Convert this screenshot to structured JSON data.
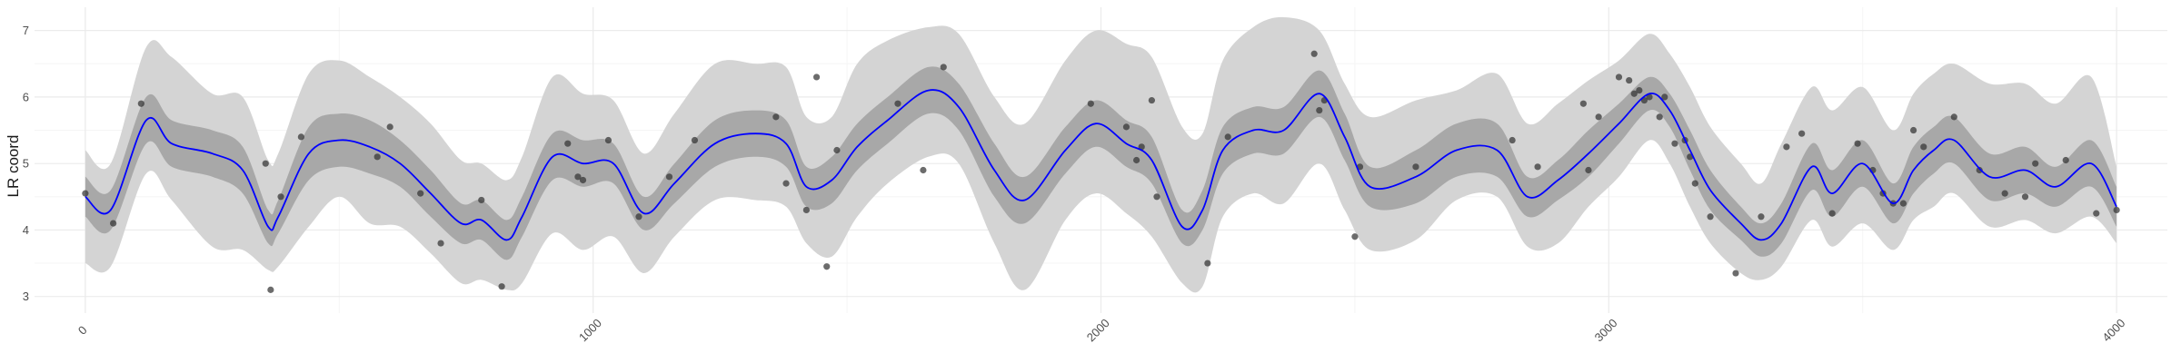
{
  "chart_data": {
    "type": "line",
    "title": "",
    "xlabel": "",
    "ylabel": "LR coord",
    "xlim": [
      -100,
      4100
    ],
    "ylim": [
      2.75,
      7.35
    ],
    "x_ticks": [
      0,
      1000,
      2000,
      3000,
      4000
    ],
    "x_tick_labels": [
      "0",
      "1000",
      "2000",
      "3000",
      "4000"
    ],
    "y_ticks": [
      3,
      4,
      5,
      6,
      7
    ],
    "y_tick_labels": [
      "3",
      "4",
      "5",
      "6",
      "7"
    ],
    "grid": true,
    "colors": {
      "mean_line": "#0000ff",
      "inner_band": "#a8a8a8",
      "outer_band": "#d4d4d4",
      "points": "#333333",
      "grid_major": "#ebebeb",
      "grid_minor": "#f5f5f5"
    },
    "mean_curve": {
      "x": [
        0,
        50,
        120,
        170,
        250,
        310,
        360,
        380,
        440,
        500,
        560,
        620,
        680,
        740,
        780,
        830,
        860,
        920,
        980,
        1040,
        1100,
        1160,
        1240,
        1320,
        1380,
        1420,
        1470,
        1520,
        1580,
        1660,
        1720,
        1790,
        1850,
        1930,
        1990,
        2050,
        2100,
        2160,
        2200,
        2240,
        2300,
        2360,
        2430,
        2480,
        2530,
        2620,
        2700,
        2780,
        2840,
        2900,
        2960,
        3020,
        3080,
        3120,
        3160,
        3200,
        3260,
        3300,
        3340,
        3400,
        3440,
        3500,
        3560,
        3600,
        3640,
        3680,
        3750,
        3820,
        3880,
        3950,
        4000
      ],
      "y": [
        4.5,
        4.3,
        5.65,
        5.3,
        5.15,
        4.9,
        4.05,
        4.2,
        5.15,
        5.35,
        5.25,
        5.0,
        4.55,
        4.1,
        4.15,
        3.85,
        4.2,
        5.1,
        5.0,
        5.0,
        4.25,
        4.7,
        5.3,
        5.45,
        5.3,
        4.65,
        4.75,
        5.25,
        5.65,
        6.1,
        5.85,
        4.9,
        4.45,
        5.2,
        5.6,
        5.3,
        5.05,
        4.05,
        4.3,
        5.2,
        5.5,
        5.5,
        6.05,
        5.4,
        4.65,
        4.8,
        5.2,
        5.2,
        4.5,
        4.75,
        5.15,
        5.6,
        6.05,
        5.8,
        5.2,
        4.6,
        4.1,
        3.85,
        4.1,
        4.95,
        4.55,
        5.0,
        4.4,
        4.9,
        5.2,
        5.35,
        4.8,
        4.9,
        4.65,
        5.0,
        4.35
      ]
    },
    "inner_band": {
      "x": [
        0,
        50,
        120,
        170,
        250,
        310,
        360,
        380,
        440,
        500,
        560,
        620,
        680,
        740,
        780,
        830,
        860,
        920,
        980,
        1040,
        1100,
        1160,
        1240,
        1320,
        1380,
        1420,
        1470,
        1520,
        1580,
        1660,
        1720,
        1790,
        1850,
        1930,
        1990,
        2050,
        2100,
        2160,
        2200,
        2240,
        2300,
        2360,
        2430,
        2480,
        2530,
        2620,
        2700,
        2780,
        2840,
        2900,
        2960,
        3020,
        3080,
        3120,
        3160,
        3200,
        3260,
        3300,
        3340,
        3400,
        3440,
        3500,
        3560,
        3600,
        3640,
        3680,
        3750,
        3820,
        3880,
        3950,
        4000
      ],
      "lower": [
        4.2,
        4.0,
        5.3,
        4.95,
        4.8,
        4.55,
        3.8,
        3.95,
        4.75,
        4.95,
        4.85,
        4.65,
        4.2,
        3.8,
        3.85,
        3.55,
        3.9,
        4.75,
        4.65,
        4.7,
        4.0,
        4.4,
        4.95,
        5.1,
        4.95,
        4.35,
        4.4,
        4.9,
        5.3,
        5.75,
        5.5,
        4.5,
        4.1,
        4.85,
        5.25,
        4.95,
        4.7,
        3.8,
        4.0,
        4.85,
        5.15,
        5.15,
        5.7,
        5.05,
        4.35,
        4.4,
        4.8,
        4.8,
        4.2,
        4.45,
        4.8,
        5.3,
        5.8,
        5.55,
        4.9,
        4.3,
        3.85,
        3.6,
        3.8,
        4.6,
        4.2,
        4.65,
        4.1,
        4.55,
        4.85,
        5.0,
        4.45,
        4.55,
        4.35,
        4.65,
        4.05
      ],
      "upper": [
        4.8,
        4.6,
        6.0,
        5.65,
        5.5,
        5.25,
        4.3,
        4.45,
        5.55,
        5.75,
        5.65,
        5.35,
        4.9,
        4.4,
        4.45,
        4.15,
        4.5,
        5.45,
        5.35,
        5.3,
        4.5,
        5.0,
        5.65,
        5.8,
        5.65,
        4.95,
        5.1,
        5.6,
        6.0,
        6.45,
        6.2,
        5.3,
        4.8,
        5.55,
        5.95,
        5.65,
        5.4,
        4.3,
        4.6,
        5.55,
        5.85,
        5.85,
        6.4,
        5.75,
        4.95,
        5.2,
        5.6,
        5.6,
        4.8,
        5.05,
        5.5,
        5.9,
        6.3,
        6.05,
        5.5,
        4.9,
        4.35,
        4.1,
        4.4,
        5.3,
        4.9,
        5.35,
        4.7,
        5.25,
        5.55,
        5.7,
        5.15,
        5.25,
        4.95,
        5.35,
        4.65
      ]
    },
    "outer_band": {
      "x": [
        0,
        50,
        120,
        170,
        250,
        310,
        360,
        380,
        440,
        500,
        560,
        620,
        680,
        740,
        780,
        830,
        860,
        920,
        980,
        1040,
        1100,
        1160,
        1240,
        1320,
        1380,
        1420,
        1470,
        1520,
        1580,
        1660,
        1720,
        1790,
        1850,
        1930,
        1990,
        2050,
        2100,
        2160,
        2200,
        2240,
        2300,
        2360,
        2430,
        2480,
        2530,
        2620,
        2700,
        2780,
        2840,
        2900,
        2960,
        3020,
        3080,
        3120,
        3160,
        3200,
        3260,
        3300,
        3340,
        3400,
        3440,
        3500,
        3560,
        3600,
        3640,
        3680,
        3750,
        3820,
        3880,
        3950,
        4000
      ],
      "lower": [
        3.5,
        3.45,
        4.85,
        4.45,
        3.75,
        3.7,
        3.4,
        3.45,
        4.05,
        4.5,
        4.1,
        4.05,
        3.65,
        3.2,
        3.25,
        3.1,
        3.2,
        3.95,
        3.7,
        3.9,
        3.35,
        3.9,
        4.45,
        4.45,
        4.35,
        3.8,
        3.6,
        4.2,
        4.7,
        5.1,
        5.0,
        3.8,
        3.1,
        4.15,
        4.55,
        4.25,
        3.9,
        3.2,
        3.15,
        4.2,
        4.55,
        4.4,
        5.0,
        4.3,
        3.7,
        3.85,
        4.45,
        4.5,
        3.75,
        3.8,
        4.35,
        4.8,
        5.35,
        5.0,
        4.35,
        3.8,
        3.35,
        3.25,
        3.45,
        4.15,
        3.75,
        4.1,
        3.7,
        4.15,
        4.35,
        4.55,
        4.05,
        4.15,
        3.95,
        4.2,
        3.8
      ],
      "upper": [
        5.2,
        5.0,
        6.75,
        6.6,
        6.05,
        6.0,
        5.05,
        5.15,
        6.35,
        6.55,
        6.3,
        6.0,
        5.6,
        5.05,
        5.0,
        4.75,
        5.1,
        6.3,
        6.05,
        5.95,
        5.15,
        5.75,
        6.5,
        6.5,
        6.45,
        5.7,
        5.7,
        6.5,
        6.85,
        7.05,
        6.95,
        6.0,
        5.6,
        6.55,
        7.0,
        6.8,
        6.6,
        5.55,
        5.45,
        6.55,
        7.05,
        7.2,
        7.0,
        6.2,
        5.7,
        5.95,
        6.1,
        6.35,
        5.6,
        5.9,
        6.25,
        6.55,
        6.95,
        6.65,
        6.15,
        5.55,
        5.0,
        4.7,
        5.3,
        6.15,
        5.8,
        6.15,
        5.5,
        6.05,
        6.35,
        6.5,
        6.2,
        6.2,
        5.9,
        6.3,
        4.95
      ]
    },
    "points": {
      "x": [
        0,
        55,
        110,
        355,
        365,
        385,
        425,
        575,
        600,
        660,
        700,
        780,
        820,
        950,
        970,
        980,
        1030,
        1090,
        1150,
        1200,
        1360,
        1380,
        1420,
        1440,
        1460,
        1480,
        1600,
        1650,
        1690,
        1980,
        2050,
        2070,
        2080,
        2100,
        2110,
        2210,
        2250,
        2420,
        2430,
        2440,
        2500,
        2510,
        2620,
        2810,
        2860,
        2950,
        2960,
        2980,
        3020,
        3040,
        3050,
        3060,
        3070,
        3080,
        3100,
        3110,
        3130,
        3150,
        3160,
        3170,
        3200,
        3250,
        3300,
        3350,
        3380,
        3440,
        3490,
        3520,
        3540,
        3560,
        3580,
        3600,
        3620,
        3680,
        3730,
        3780,
        3820,
        3840,
        3900,
        3960,
        4000
      ],
      "y": [
        4.55,
        4.1,
        5.9,
        5.0,
        3.1,
        4.5,
        5.4,
        5.1,
        5.55,
        4.55,
        3.8,
        4.45,
        3.15,
        5.3,
        4.8,
        4.75,
        5.35,
        4.2,
        4.8,
        5.35,
        5.7,
        4.7,
        4.3,
        6.3,
        3.45,
        5.2,
        5.9,
        4.9,
        6.45,
        5.9,
        5.55,
        5.05,
        5.25,
        5.95,
        4.5,
        3.5,
        5.4,
        6.65,
        5.8,
        5.95,
        3.9,
        4.95,
        4.95,
        5.35,
        4.95,
        5.9,
        4.9,
        5.7,
        6.3,
        6.25,
        6.05,
        6.1,
        5.95,
        6.0,
        5.7,
        6.0,
        5.3,
        5.35,
        5.1,
        4.7,
        4.2,
        3.35,
        4.2,
        5.25,
        5.45,
        4.25,
        5.3,
        4.9,
        4.55,
        4.4,
        4.4,
        5.5,
        5.25,
        5.7,
        4.9,
        4.55,
        4.5,
        5.0,
        5.05,
        4.25,
        4.3
      ]
    }
  }
}
